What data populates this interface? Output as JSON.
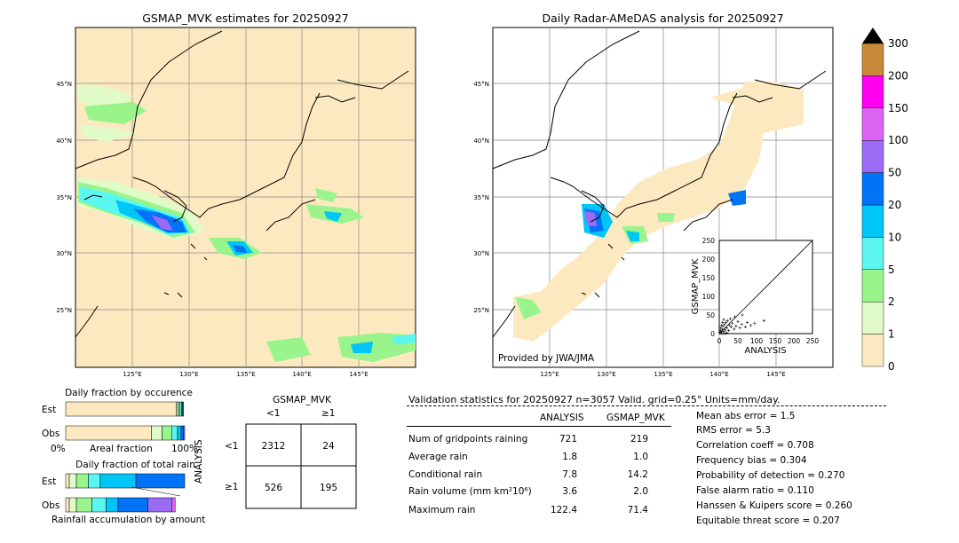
{
  "left_map": {
    "title": "GSMAP_MVK estimates for 20250927",
    "lon_labels": [
      "125°E",
      "130°E",
      "135°E",
      "140°E",
      "145°E"
    ],
    "lat_labels": [
      "45°N",
      "40°N",
      "35°N",
      "30°N",
      "25°N"
    ]
  },
  "right_map": {
    "title": "Daily Radar-AMeDAS analysis for 20250927",
    "lon_labels": [
      "125°E",
      "130°E",
      "135°E",
      "140°E",
      "145°E"
    ],
    "lat_labels": [
      "45°N",
      "40°N",
      "35°N",
      "30°N",
      "25°N"
    ],
    "credit": "Provided by JWA/JMA"
  },
  "scatter_inset": {
    "xlabel": "ANALYSIS",
    "ylabel": "GSMAP_MVK",
    "ticks": [
      "0",
      "50",
      "100",
      "150",
      "200",
      "250"
    ]
  },
  "colorbar": {
    "labels": [
      "0",
      "1",
      "2",
      "5",
      "10",
      "20",
      "50",
      "100",
      "150",
      "200",
      "300"
    ],
    "colors": [
      "#fde9c0",
      "#e0fbc8",
      "#99f48c",
      "#5cf6f0",
      "#00c6f7",
      "#0073f7",
      "#9b6bf4",
      "#dc64f2",
      "#ff00f0",
      "#c88a38"
    ],
    "extend_color": "#000000"
  },
  "occurrence": {
    "title": "Daily fraction by occurence",
    "row_labels": [
      "Est",
      "Obs"
    ],
    "axis_left": "0%",
    "axis_mid": "Areal fraction",
    "axis_right": "100%"
  },
  "total_rain": {
    "title": "Daily fraction of total rain",
    "row_labels": [
      "Est",
      "Obs"
    ],
    "footer": "Rainfall accumulation by amount"
  },
  "contingency": {
    "title": "GSMAP_MVK",
    "col_labels": [
      "<1",
      "≥1"
    ],
    "row_axis": "ANALYSIS",
    "row_labels": [
      "<1",
      "≥1"
    ],
    "cells": [
      [
        "2312",
        "24"
      ],
      [
        "526",
        "195"
      ]
    ]
  },
  "validation": {
    "header": "Validation statistics for 20250927  n=3057 Valid. grid=0.25° Units=mm/day.",
    "col_headers": [
      "ANALYSIS",
      "GSMAP_MVK"
    ],
    "rows": [
      {
        "label": "Num of gridpoints raining",
        "a": "721",
        "g": "219"
      },
      {
        "label": "Average rain",
        "a": "1.8",
        "g": "1.0"
      },
      {
        "label": "Conditional rain",
        "a": "7.8",
        "g": "14.2"
      },
      {
        "label": "Rain volume (mm km²10⁶)",
        "a": "3.6",
        "g": "2.0"
      },
      {
        "label": "Maximum rain",
        "a": "122.4",
        "g": "71.4"
      }
    ],
    "scores": [
      "Mean abs error =    1.5",
      "RMS error =    5.3",
      "Correlation coeff =  0.708",
      "Frequency bias =  0.304",
      "Probability of detection =  0.270",
      "False alarm ratio =  0.110",
      "Hanssen & Kuipers score =  0.260",
      "Equitable threat score =  0.207"
    ]
  },
  "chart_data": [
    {
      "type": "heatmap",
      "title": "GSMAP_MVK estimates for 20250927",
      "x_range_lon": [
        120,
        150
      ],
      "y_range_lat": [
        20,
        50
      ],
      "units": "mm/day"
    },
    {
      "type": "heatmap",
      "title": "Daily Radar-AMeDAS analysis for 20250927",
      "x_range_lon": [
        120,
        150
      ],
      "y_range_lat": [
        20,
        50
      ],
      "units": "mm/day"
    },
    {
      "type": "scatter",
      "xlabel": "ANALYSIS",
      "ylabel": "GSMAP_MVK",
      "xlim": [
        0,
        250
      ],
      "ylim": [
        0,
        250
      ],
      "points": [
        [
          2,
          3
        ],
        [
          4,
          8
        ],
        [
          6,
          5
        ],
        [
          8,
          12
        ],
        [
          10,
          20
        ],
        [
          12,
          6
        ],
        [
          14,
          25
        ],
        [
          16,
          10
        ],
        [
          18,
          30
        ],
        [
          20,
          15
        ],
        [
          22,
          35
        ],
        [
          25,
          8
        ],
        [
          28,
          22
        ],
        [
          30,
          40
        ],
        [
          32,
          18
        ],
        [
          35,
          28
        ],
        [
          40,
          12
        ],
        [
          42,
          45
        ],
        [
          45,
          20
        ],
        [
          50,
          32
        ],
        [
          55,
          15
        ],
        [
          60,
          25
        ],
        [
          62,
          50
        ],
        [
          70,
          18
        ],
        [
          75,
          30
        ],
        [
          85,
          22
        ],
        [
          95,
          28
        ],
        [
          120,
          35
        ],
        [
          5,
          0
        ],
        [
          10,
          0
        ],
        [
          15,
          0
        ],
        [
          20,
          2
        ],
        [
          3,
          15
        ],
        [
          6,
          22
        ],
        [
          9,
          30
        ],
        [
          12,
          38
        ]
      ]
    },
    {
      "type": "bar",
      "title": "Daily fraction by occurence",
      "categories": [
        "Est",
        "Obs"
      ],
      "series": [
        {
          "values": [
            0.93,
            0.72
          ]
        },
        {
          "values": [
            0.015,
            0.09
          ]
        },
        {
          "values": [
            0.015,
            0.08
          ]
        },
        {
          "values": [
            0.012,
            0.05
          ]
        },
        {
          "values": [
            0.01,
            0.03
          ]
        },
        {
          "values": [
            0.008,
            0.02
          ]
        },
        {
          "values": [
            0.0,
            0.01
          ]
        }
      ]
    },
    {
      "type": "bar",
      "title": "Daily fraction of total rain",
      "categories": [
        "Est",
        "Obs"
      ],
      "series": [
        {
          "values": [
            0.03,
            0.03
          ]
        },
        {
          "values": [
            0.06,
            0.06
          ]
        },
        {
          "values": [
            0.1,
            0.13
          ]
        },
        {
          "values": [
            0.1,
            0.12
          ]
        },
        {
          "values": [
            0.3,
            0.1
          ]
        },
        {
          "values": [
            0.41,
            0.25
          ]
        },
        {
          "values": [
            0.0,
            0.2
          ]
        },
        {
          "values": [
            0.0,
            0.03
          ]
        }
      ]
    }
  ]
}
